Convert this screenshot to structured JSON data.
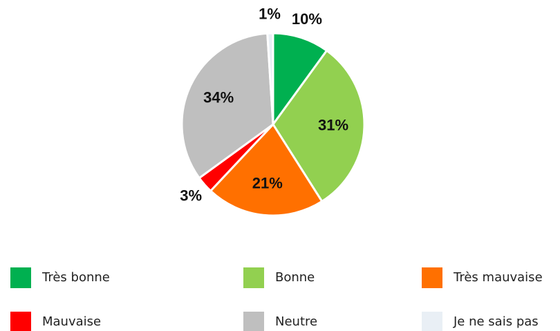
{
  "chart_data": {
    "type": "pie",
    "categories": [
      "Très bonne",
      "Bonne",
      "Très mauvaise",
      "Mauvaise",
      "Neutre",
      "Je ne sais pas"
    ],
    "values": [
      10,
      31,
      21,
      3,
      34,
      1
    ],
    "value_labels": [
      "10%",
      "31%",
      "21%",
      "3%",
      "34%",
      "1%"
    ],
    "colors": [
      "#00b050",
      "#92d050",
      "#ff7000",
      "#ff0000",
      "#bfbfbf",
      "#e9eff5"
    ],
    "legend": "bottom"
  }
}
